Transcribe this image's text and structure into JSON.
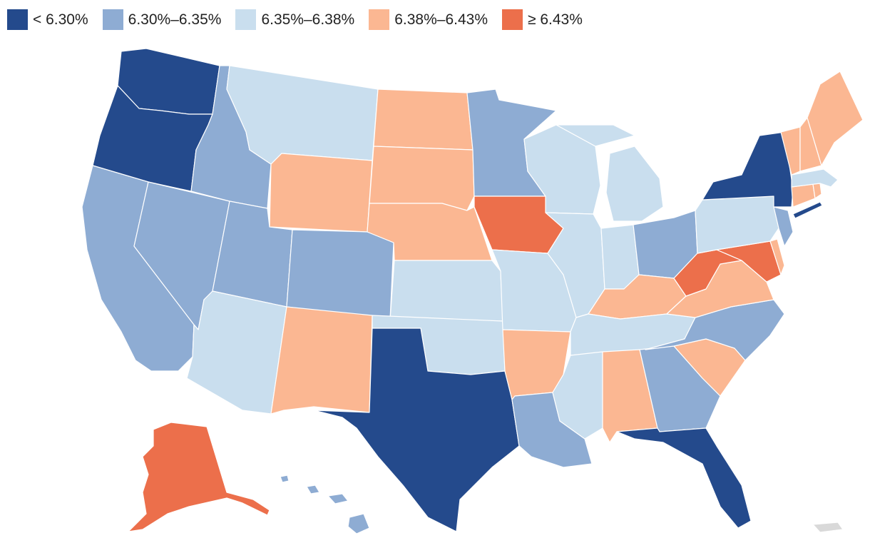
{
  "legend": {
    "items": [
      {
        "label": "< 6.30%",
        "color": "#244a8c"
      },
      {
        "label": "6.30%–6.35%",
        "color": "#8eacd3"
      },
      {
        "label": "6.35%–6.38%",
        "color": "#c9deee"
      },
      {
        "label": "6.38%–6.43%",
        "color": "#fbb792"
      },
      {
        "label": "≥ 6.43%",
        "color": "#ec6f4b"
      }
    ]
  },
  "colors": {
    "nodata": "#d9d9d9"
  },
  "state_bins": {
    "WA": 0,
    "OR": 0,
    "CA": 1,
    "NV": 1,
    "ID": 1,
    "MT": 2,
    "WY": 3,
    "UT": 1,
    "AZ": 2,
    "CO": 1,
    "NM": 3,
    "ND": 3,
    "SD": 3,
    "NE": 3,
    "KS": 2,
    "OK": 2,
    "TX": 0,
    "MN": 1,
    "IA": 4,
    "MO": 2,
    "AR": 3,
    "LA": 1,
    "WI": 2,
    "IL": 2,
    "MI": 2,
    "IN": 2,
    "OH": 1,
    "KY": 3,
    "TN": 2,
    "MS": 2,
    "AL": 3,
    "GA": 1,
    "FL": 0,
    "SC": 3,
    "NC": 1,
    "VA": 3,
    "WV": 4,
    "MD": 4,
    "DE": 3,
    "PA": 2,
    "NJ": 1,
    "NY": 0,
    "CT": 3,
    "RI": 3,
    "MA": 2,
    "VT": 3,
    "NH": 3,
    "ME": 3,
    "AK": 4,
    "HI": 1
  }
}
